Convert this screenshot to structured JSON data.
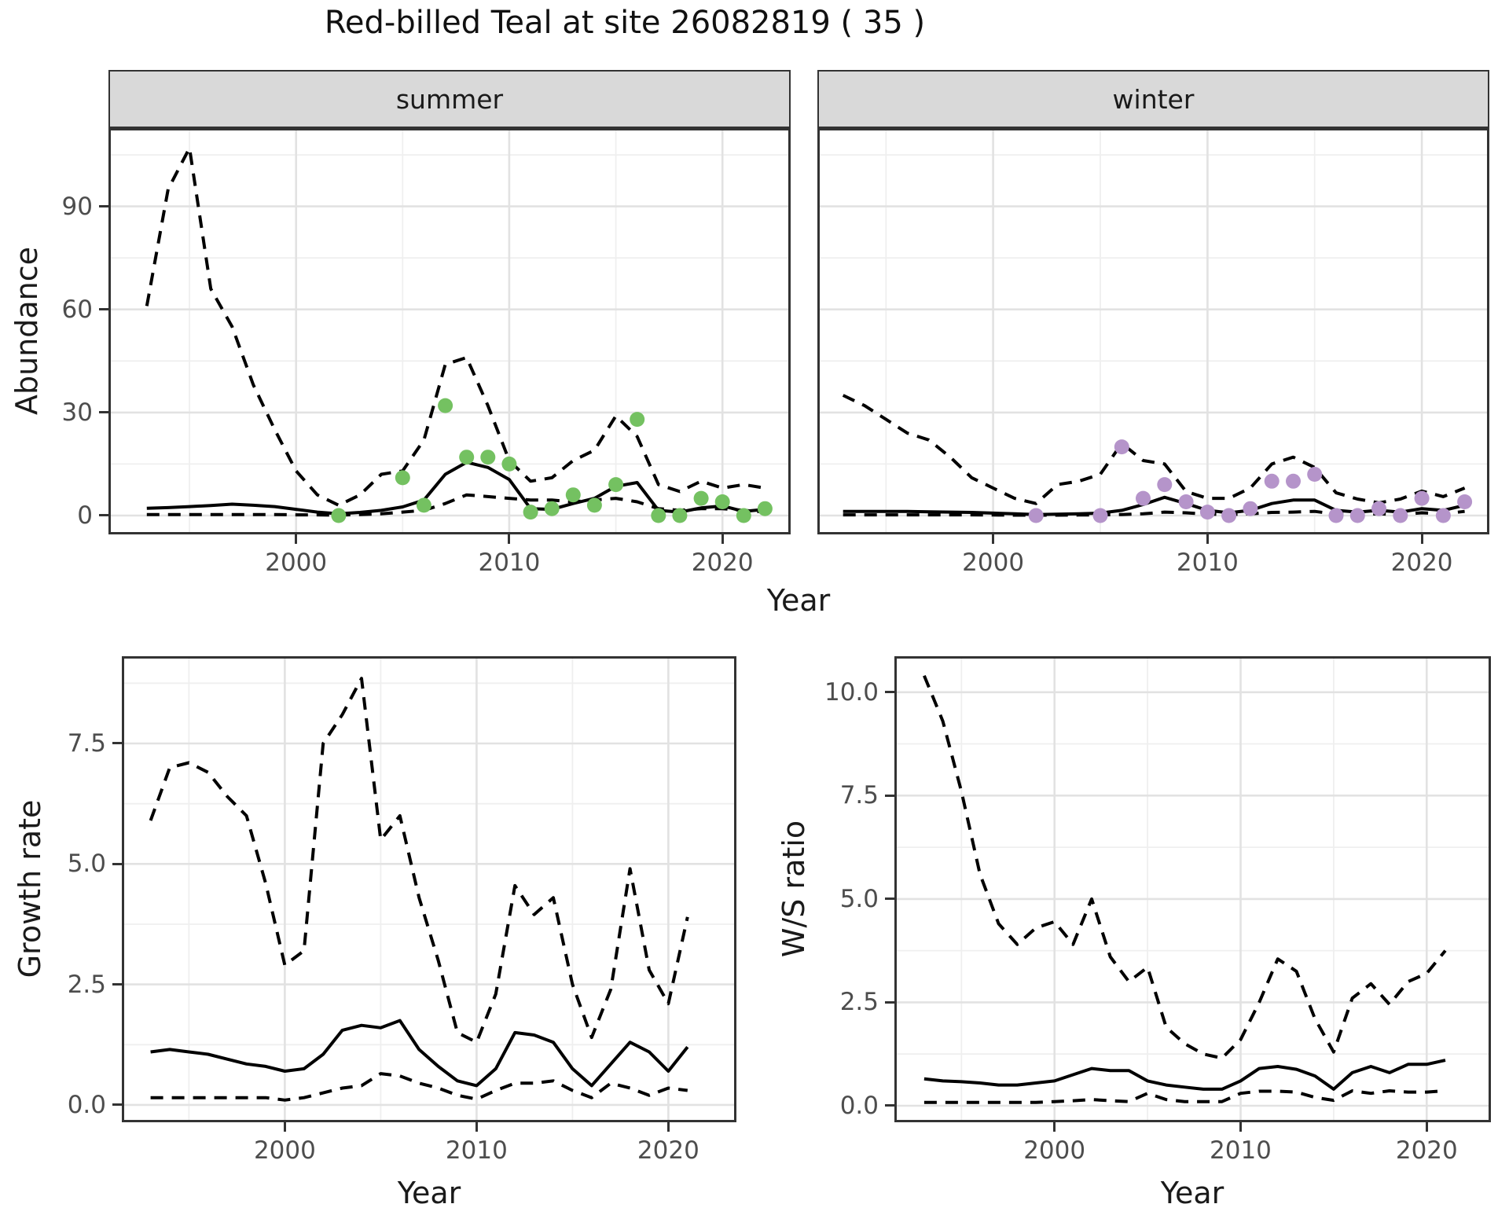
{
  "title": "Red-billed Teal at site 26082819 ( 35 )",
  "labels": {
    "abundance": "Abundance",
    "growth": "Growth rate",
    "ws": "W/S ratio",
    "year": "Year"
  },
  "facets": [
    "summer",
    "winter"
  ],
  "colors": {
    "summer_points": "#74C161",
    "winter_points": "#B594CA",
    "line": "#000000",
    "strip_background": "#D9D9D9",
    "grid_major": "#E2E2E2",
    "grid_minor": "#EFEFEF",
    "tick_text": "#4D4D4D"
  },
  "chart_data": [
    {
      "id": "summer",
      "type": "line",
      "facet": "summer",
      "xlabel": "Year",
      "ylabel": "Abundance",
      "xlim": [
        1991.2,
        2023.2
      ],
      "ylim": [
        -5.5,
        112.8
      ],
      "xticks": [
        2000,
        2010,
        2020
      ],
      "xtick_labels": [
        "2000",
        "2010",
        "2020"
      ],
      "yticks": [
        0,
        30,
        60,
        90
      ],
      "ytick_labels": [
        "0",
        "30",
        "60",
        "90"
      ],
      "grid": true,
      "legend": "none",
      "x": [
        1993,
        1994,
        1995,
        1996,
        1997,
        1998,
        1999,
        2000,
        2001,
        2002,
        2003,
        2004,
        2005,
        2006,
        2007,
        2008,
        2009,
        2010,
        2011,
        2012,
        2013,
        2014,
        2015,
        2016,
        2017,
        2018,
        2019,
        2020,
        2021,
        2022
      ],
      "series": [
        {
          "name": "median",
          "style": "solid",
          "values": [
            2.1,
            2.3,
            2.6,
            2.9,
            3.3,
            3.0,
            2.6,
            1.8,
            1.0,
            0.5,
            0.9,
            1.5,
            2.5,
            4.5,
            12,
            15.5,
            14,
            10.5,
            2,
            1.8,
            3.5,
            5,
            8.5,
            9.6,
            1.5,
            1,
            2.2,
            2.8,
            1.2,
            1.8
          ]
        },
        {
          "name": "lower_95ci",
          "style": "dashed",
          "values": [
            0.3,
            0.3,
            0.3,
            0.3,
            0.3,
            0.3,
            0.3,
            0.2,
            0.2,
            0.1,
            0.3,
            0.5,
            1,
            1.5,
            3.5,
            6,
            5.5,
            5,
            4.5,
            4.5,
            4,
            4.5,
            5,
            4,
            2,
            1.5,
            2,
            2,
            1.5,
            1
          ]
        },
        {
          "name": "upper_95ci",
          "style": "dashed",
          "values": [
            61,
            95,
            107,
            66,
            55,
            38,
            25,
            13,
            6,
            3,
            6,
            12,
            13,
            22,
            44,
            46,
            32,
            16,
            10,
            11,
            16,
            19,
            29,
            23,
            9,
            7,
            10,
            8,
            9,
            8
          ]
        }
      ],
      "points": {
        "name": "observed counts",
        "color": "#74C161",
        "x": [
          2002,
          2005,
          2006,
          2007,
          2008,
          2009,
          2010,
          2011,
          2012,
          2013,
          2014,
          2015,
          2016,
          2017,
          2018,
          2019,
          2020,
          2021,
          2022
        ],
        "y": [
          0,
          11,
          3,
          32,
          17,
          17,
          15,
          1,
          2,
          6,
          3,
          9,
          28,
          0,
          0,
          5,
          4,
          0,
          2
        ]
      }
    },
    {
      "id": "winter",
      "type": "line",
      "facet": "winter",
      "xlabel": "Year",
      "ylabel": "Abundance",
      "xlim": [
        1991.8,
        2023.15
      ],
      "ylim": [
        -5.5,
        112.8
      ],
      "xticks": [
        2000,
        2010,
        2020
      ],
      "xtick_labels": [
        "2000",
        "2010",
        "2020"
      ],
      "yticks": [
        0,
        30,
        60,
        90
      ],
      "ytick_labels": [],
      "grid": true,
      "legend": "none",
      "x": [
        1993,
        1994,
        1995,
        1996,
        1997,
        1998,
        1999,
        2000,
        2001,
        2002,
        2003,
        2004,
        2005,
        2006,
        2007,
        2008,
        2009,
        2010,
        2011,
        2012,
        2013,
        2014,
        2015,
        2016,
        2017,
        2018,
        2019,
        2020,
        2021,
        2022
      ],
      "series": [
        {
          "name": "median",
          "style": "solid",
          "values": [
            1.2,
            1.2,
            1.2,
            1.2,
            1.1,
            1.0,
            0.9,
            0.7,
            0.5,
            0.3,
            0.4,
            0.5,
            0.7,
            1.5,
            3.2,
            5.3,
            3.5,
            1.5,
            0.8,
            1.5,
            3.5,
            4.5,
            4.5,
            1.5,
            1.0,
            1.5,
            1.0,
            2.0,
            1.5,
            3.0
          ]
        },
        {
          "name": "lower_95ci",
          "style": "dashed",
          "values": [
            0.2,
            0.2,
            0.2,
            0.2,
            0.2,
            0.2,
            0.2,
            0.15,
            0.1,
            0.1,
            0.1,
            0.15,
            0.2,
            0.3,
            0.5,
            1,
            0.8,
            0.4,
            0.3,
            0.5,
            0.9,
            1,
            1.2,
            0.4,
            0.3,
            0.5,
            0.3,
            0.8,
            0.5,
            1.2
          ]
        },
        {
          "name": "upper_95ci",
          "style": "dashed",
          "values": [
            35,
            32,
            28,
            24,
            22,
            17,
            11,
            8,
            5,
            3.5,
            9,
            10,
            12,
            21,
            16,
            15,
            7,
            5,
            5,
            8,
            15,
            17,
            14,
            6.6,
            4.8,
            3.7,
            4.8,
            7.1,
            5.5,
            8
          ]
        }
      ],
      "points": {
        "name": "observed counts",
        "color": "#B594CA",
        "x": [
          2002,
          2005,
          2006,
          2007,
          2008,
          2009,
          2010,
          2011,
          2012,
          2013,
          2014,
          2015,
          2016,
          2017,
          2018,
          2019,
          2020,
          2021,
          2022
        ],
        "y": [
          0,
          0,
          20,
          5,
          9,
          4,
          1,
          0,
          2,
          10,
          10,
          12,
          0,
          0,
          2,
          0,
          5,
          0,
          4
        ]
      }
    },
    {
      "id": "growth",
      "type": "line",
      "facet": "",
      "xlabel": "Year",
      "ylabel": "Growth rate",
      "xlim": [
        1991.5,
        2023.55
      ],
      "ylim": [
        -0.36,
        9.31
      ],
      "xticks": [
        2000,
        2010,
        2020
      ],
      "xtick_labels": [
        "2000",
        "2010",
        "2020"
      ],
      "yticks": [
        0,
        2.5,
        5,
        7.5
      ],
      "ytick_labels": [
        "0.0",
        "2.5",
        "5.0",
        "7.5"
      ],
      "grid": true,
      "legend": "none",
      "x": [
        1993,
        1994,
        1995,
        1996,
        1997,
        1998,
        1999,
        2000,
        2001,
        2002,
        2003,
        2004,
        2005,
        2006,
        2007,
        2008,
        2009,
        2010,
        2011,
        2012,
        2013,
        2014,
        2015,
        2016,
        2017,
        2018,
        2019,
        2020,
        2021
      ],
      "series": [
        {
          "name": "median",
          "style": "solid",
          "values": [
            1.1,
            1.15,
            1.1,
            1.05,
            0.95,
            0.85,
            0.8,
            0.7,
            0.75,
            1.05,
            1.55,
            1.65,
            1.6,
            1.75,
            1.15,
            0.8,
            0.5,
            0.4,
            0.75,
            1.5,
            1.45,
            1.3,
            0.75,
            0.4,
            0.85,
            1.3,
            1.1,
            0.7,
            1.2
          ]
        },
        {
          "name": "lower_95ci",
          "style": "dashed",
          "values": [
            0.15,
            0.15,
            0.15,
            0.15,
            0.15,
            0.15,
            0.15,
            0.1,
            0.15,
            0.25,
            0.35,
            0.4,
            0.65,
            0.6,
            0.45,
            0.35,
            0.2,
            0.12,
            0.3,
            0.45,
            0.45,
            0.5,
            0.3,
            0.15,
            0.45,
            0.35,
            0.2,
            0.35,
            0.3
          ]
        },
        {
          "name": "upper_95ci",
          "style": "dashed",
          "values": [
            5.9,
            7.0,
            7.1,
            6.9,
            6.4,
            6.0,
            4.6,
            2.9,
            3.2,
            7.5,
            8.1,
            8.85,
            5.5,
            6.0,
            4.3,
            3.0,
            1.5,
            1.3,
            2.3,
            4.55,
            3.95,
            4.3,
            2.5,
            1.4,
            2.4,
            4.9,
            2.8,
            2.1,
            3.9
          ]
        }
      ],
      "points": null
    },
    {
      "id": "ws",
      "type": "line",
      "facet": "",
      "xlabel": "Year",
      "ylabel": "W/S ratio",
      "xlim": [
        1991.4,
        2023.45
      ],
      "ylim": [
        -0.4,
        10.87
      ],
      "xticks": [
        2000,
        2010,
        2020
      ],
      "xtick_labels": [
        "2000",
        "2010",
        "2020"
      ],
      "yticks": [
        0,
        2.5,
        5,
        7.5,
        10
      ],
      "ytick_labels": [
        "0.0",
        "2.5",
        "5.0",
        "7.5",
        "10.0"
      ],
      "grid": true,
      "legend": "none",
      "x": [
        1993,
        1994,
        1995,
        1996,
        1997,
        1998,
        1999,
        2000,
        2001,
        2002,
        2003,
        2004,
        2005,
        2006,
        2007,
        2008,
        2009,
        2010,
        2011,
        2012,
        2013,
        2014,
        2015,
        2016,
        2017,
        2018,
        2019,
        2020,
        2021
      ],
      "series": [
        {
          "name": "median",
          "style": "solid",
          "values": [
            0.65,
            0.6,
            0.58,
            0.55,
            0.5,
            0.5,
            0.55,
            0.6,
            0.75,
            0.9,
            0.85,
            0.85,
            0.6,
            0.5,
            0.45,
            0.4,
            0.4,
            0.6,
            0.9,
            0.95,
            0.88,
            0.72,
            0.4,
            0.8,
            0.95,
            0.8,
            1.0,
            1.0,
            1.1
          ]
        },
        {
          "name": "lower_95ci",
          "style": "dashed",
          "values": [
            0.08,
            0.08,
            0.08,
            0.08,
            0.08,
            0.08,
            0.08,
            0.1,
            0.12,
            0.15,
            0.12,
            0.1,
            0.3,
            0.15,
            0.1,
            0.1,
            0.1,
            0.3,
            0.35,
            0.35,
            0.33,
            0.2,
            0.13,
            0.36,
            0.3,
            0.36,
            0.33,
            0.33,
            0.36
          ]
        },
        {
          "name": "upper_95ci",
          "style": "dashed",
          "values": [
            10.4,
            9.3,
            7.6,
            5.6,
            4.4,
            3.9,
            4.3,
            4.45,
            3.9,
            5.0,
            3.6,
            3.0,
            3.35,
            1.9,
            1.5,
            1.25,
            1.15,
            1.6,
            2.5,
            3.55,
            3.25,
            2.1,
            1.3,
            2.6,
            2.95,
            2.45,
            3.0,
            3.2,
            3.75
          ]
        }
      ],
      "points": null
    }
  ]
}
